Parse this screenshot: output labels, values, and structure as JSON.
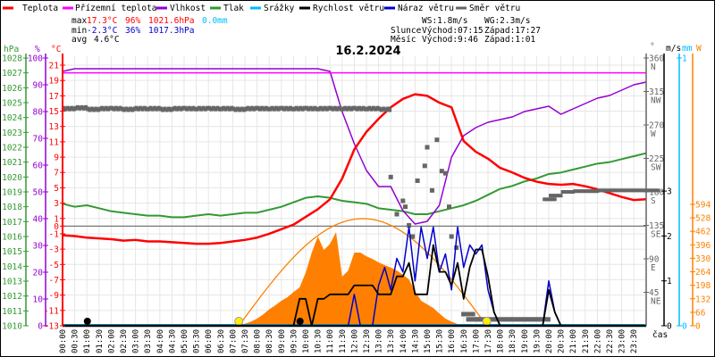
{
  "legend": [
    {
      "label": "Teplota",
      "color": "#ff0000"
    },
    {
      "label": "Přízemní teplota",
      "color": "#ff00ff"
    },
    {
      "label": "Vlhkost",
      "color": "#9400d3"
    },
    {
      "label": "Tlak",
      "color": "#339933"
    },
    {
      "label": "Srážky",
      "color": "#00bbff"
    },
    {
      "label": "Rychlost větru",
      "color": "#000000"
    },
    {
      "label": "Náraz větru",
      "color": "#0000cc"
    },
    {
      "label": "Směr větru",
      "color": "#666666"
    }
  ],
  "stats": {
    "max_label": "max",
    "max_temp": "17.3°C",
    "max_hum": "96%",
    "max_press": "1021.6hPa",
    "rain": "0.0mm",
    "min_label": "min",
    "min_temp": "-2.3°C",
    "min_hum": "36%",
    "min_press": "1017.3hPa",
    "avg_label": "avg",
    "avg_temp": "4.6°C",
    "ws": "WS:1.8m/s",
    "wg": "WG:2.3m/s",
    "sun_label": "Slunce",
    "sunrise": "Východ:07:15",
    "sunset": "Západ:17:27",
    "moon_label": "Měsíc",
    "moonrise": "Východ:9:46",
    "moonset": "Západ:1:01"
  },
  "colors": {
    "temp": "#ff0000",
    "apparent": "#ff00ff",
    "hum": "#9400d3",
    "press": "#339933",
    "rain": "#00bbff",
    "wind": "#000000",
    "gust": "#0000cc",
    "dir": "#666666",
    "solar": "#ff8000",
    "grid": "#e6e6e6"
  },
  "chart_data": {
    "type": "line",
    "title": "16.2.2024",
    "xlabel": "čas",
    "x_ticks": [
      "00:00",
      "00:30",
      "01:00",
      "01:30",
      "02:00",
      "02:30",
      "03:00",
      "03:30",
      "04:00",
      "04:30",
      "05:00",
      "05:30",
      "06:00",
      "06:30",
      "07:00",
      "07:30",
      "08:00",
      "08:30",
      "09:00",
      "09:30",
      "10:00",
      "10:30",
      "11:00",
      "11:30",
      "12:00",
      "12:30",
      "13:00",
      "13:30",
      "14:00",
      "14:30",
      "15:00",
      "15:30",
      "16:00",
      "16:30",
      "17:00",
      "17:30",
      "18:00",
      "18:30",
      "19:00",
      "19:30",
      "20:00",
      "20:30",
      "21:00",
      "21:30",
      "22:00",
      "22:30",
      "23:00",
      "23:30"
    ],
    "x_range_hours": [
      0,
      24
    ],
    "axes": {
      "press": {
        "unit": "hPa",
        "range": [
          1010,
          1028
        ],
        "ticks": [
          1010,
          1011,
          1012,
          1013,
          1014,
          1015,
          1016,
          1017,
          1018,
          1019,
          1020,
          1021,
          1022,
          1023,
          1024,
          1025,
          1026,
          1027,
          1028
        ]
      },
      "hum": {
        "unit": "%",
        "range": [
          0,
          100
        ],
        "ticks": [
          0,
          10,
          20,
          30,
          40,
          50,
          60,
          70,
          80,
          90,
          100
        ]
      },
      "temp": {
        "unit": "°C",
        "range": [
          -13,
          21.9
        ],
        "ticks": [
          -13,
          -11,
          -9,
          -7,
          -5,
          -3,
          -1,
          0,
          1,
          3,
          5,
          7,
          9,
          11,
          13,
          15,
          17,
          19,
          21
        ]
      },
      "dir": {
        "unit": "°",
        "range": [
          0,
          360
        ],
        "ticks": [
          45,
          90,
          135,
          180,
          225,
          270,
          315,
          360
        ],
        "names": [
          "NE",
          "E",
          "SE",
          "S",
          "SW",
          "W",
          "NW",
          "N"
        ]
      },
      "wind": {
        "unit": "m/s",
        "range": [
          0,
          3.5
        ],
        "ticks": [
          0,
          1,
          2,
          3
        ]
      },
      "rain": {
        "unit": "mm",
        "range": [
          0,
          1
        ],
        "ticks": [
          0,
          1
        ]
      },
      "solar": {
        "unit": "W",
        "range": [
          0,
          1310
        ],
        "ticks": [
          0,
          66,
          132,
          198,
          264,
          330,
          396,
          462,
          528,
          594
        ]
      }
    },
    "series": [
      {
        "name": "Teplota",
        "axis": "temp",
        "x_step_hours": 0.5,
        "values": [
          -1.2,
          -1.3,
          -1.5,
          -1.6,
          -1.7,
          -1.9,
          -1.8,
          -2.0,
          -2.0,
          -2.1,
          -2.2,
          -2.3,
          -2.3,
          -2.2,
          -2.0,
          -1.8,
          -1.5,
          -1.0,
          -0.4,
          0.2,
          1.2,
          2.2,
          3.5,
          6.2,
          10.0,
          12.3,
          14.0,
          15.5,
          16.6,
          17.2,
          17.0,
          16.1,
          15.5,
          11.1,
          9.7,
          8.8,
          7.6,
          7.0,
          6.3,
          5.8,
          5.5,
          5.4,
          5.5,
          5.2,
          4.8,
          4.3,
          3.8,
          3.4,
          3.5
        ]
      },
      {
        "name": "Přízemní teplota",
        "axis": "temp",
        "x_step_hours": 24,
        "values": [
          20.0,
          20.0
        ]
      },
      {
        "name": "Vlhkost",
        "axis": "hum",
        "x_step_hours": 0.5,
        "values": [
          95,
          96,
          96,
          96,
          96,
          96,
          96,
          96,
          96,
          96,
          96,
          96,
          96,
          96,
          96,
          96,
          96,
          96,
          96,
          96,
          96,
          96,
          95,
          80,
          68,
          58,
          52,
          52,
          43,
          38,
          39,
          45,
          63,
          71,
          74,
          76,
          77,
          78,
          80,
          81,
          82,
          79,
          81,
          83,
          85,
          86,
          88,
          90,
          91
        ]
      },
      {
        "name": "Tlak",
        "axis": "press",
        "x_step_hours": 0.5,
        "values": [
          1018.2,
          1018.0,
          1018.1,
          1017.9,
          1017.7,
          1017.6,
          1017.5,
          1017.4,
          1017.4,
          1017.3,
          1017.3,
          1017.4,
          1017.5,
          1017.4,
          1017.5,
          1017.6,
          1017.6,
          1017.8,
          1018.0,
          1018.3,
          1018.6,
          1018.7,
          1018.6,
          1018.4,
          1018.3,
          1018.2,
          1017.9,
          1017.8,
          1017.7,
          1017.5,
          1017.5,
          1017.7,
          1017.9,
          1018.1,
          1018.4,
          1018.8,
          1019.2,
          1019.4,
          1019.7,
          1019.9,
          1020.2,
          1020.3,
          1020.5,
          1020.7,
          1020.9,
          1021.0,
          1021.2,
          1021.4,
          1021.6
        ]
      },
      {
        "name": "Srážky",
        "axis": "rain",
        "x_step_hours": 24,
        "values": [
          0,
          0
        ]
      },
      {
        "name": "Rychlost větru",
        "axis": "wind",
        "x_step_hours": 0.25,
        "values": [
          0,
          0,
          0,
          0,
          0,
          0,
          0,
          0,
          0,
          0,
          0,
          0,
          0,
          0,
          0,
          0,
          0,
          0,
          0,
          0,
          0,
          0,
          0,
          0,
          0,
          0,
          0,
          0,
          0,
          0,
          0,
          0,
          0,
          0,
          0,
          0,
          0,
          0,
          0,
          0.6,
          0.6,
          0,
          0.6,
          0.6,
          0.7,
          0.7,
          0.7,
          0.7,
          0.9,
          0.9,
          0.9,
          0.9,
          0.7,
          0.7,
          0.7,
          1.1,
          1.1,
          1.4,
          0.7,
          0.7,
          0.7,
          1.8,
          1.2,
          1.2,
          0.9,
          1.4,
          0.6,
          1.3,
          1.7,
          1.7,
          1.1,
          0.3,
          0,
          0,
          0,
          0,
          0,
          0,
          0,
          0,
          0.8,
          0.3,
          0,
          0,
          0,
          0,
          0,
          0,
          0,
          0,
          0,
          0,
          0,
          0,
          0,
          0,
          0
        ]
      },
      {
        "name": "Náraz větru",
        "axis": "wind",
        "x_step_hours": 0.25,
        "values": [
          0,
          0,
          0,
          0,
          0,
          0,
          0,
          0,
          0,
          0,
          0,
          0,
          0,
          0,
          0,
          0,
          0,
          0,
          0,
          0,
          0,
          0,
          0,
          0,
          0,
          0,
          0,
          0,
          0,
          0,
          0,
          0,
          0,
          0,
          0,
          0,
          0,
          0,
          0,
          0,
          0,
          0,
          0,
          0,
          0,
          0,
          0,
          0,
          0.7,
          0,
          0,
          0,
          0.9,
          1.3,
          0.8,
          1.5,
          1.2,
          2.2,
          1.0,
          2.2,
          1.5,
          2.2,
          1.2,
          1.6,
          0.8,
          2.2,
          1.3,
          1.8,
          1.6,
          1.8,
          0.8,
          0.3,
          0,
          0,
          0,
          0,
          0,
          0,
          0,
          0,
          1.0,
          0.3,
          0,
          0,
          0,
          0,
          0,
          0,
          0,
          0,
          0,
          0,
          0,
          0,
          0,
          0,
          0
        ]
      },
      {
        "name": "Solar radiation",
        "axis": "solar",
        "x_step_hours": 0.25,
        "values": [
          0,
          0,
          0,
          0,
          0,
          0,
          0,
          0,
          0,
          0,
          0,
          0,
          0,
          0,
          0,
          0,
          0,
          0,
          0,
          0,
          0,
          0,
          0,
          0,
          0,
          0,
          0,
          0,
          0,
          0,
          10,
          20,
          35,
          55,
          80,
          100,
          122,
          140,
          165,
          188,
          260,
          358,
          437,
          371,
          400,
          458,
          240,
          270,
          358,
          358,
          340,
          327,
          310,
          297,
          285,
          270,
          250,
          227,
          170,
          122,
          105,
          87,
          60,
          35,
          20,
          9,
          0,
          0,
          0,
          0,
          0,
          0,
          0,
          0,
          0,
          0,
          0,
          0,
          0,
          0,
          0,
          0,
          0,
          0,
          0,
          0,
          0,
          0,
          0,
          0,
          0,
          0,
          0,
          0,
          0,
          0,
          0
        ]
      },
      {
        "name": "Theoretical solar",
        "axis": "solar",
        "x_step_hours": 1,
        "values": [
          0,
          0,
          0,
          0,
          0,
          0,
          0,
          0,
          60,
          230,
          380,
          480,
          524,
          500,
          430,
          320,
          180,
          40,
          0,
          0,
          0,
          0,
          0,
          0,
          0
        ]
      }
    ],
    "wind_direction_points": [
      [
        0,
        292
      ],
      [
        0.5,
        293
      ],
      [
        1,
        291
      ],
      [
        1.5,
        292
      ],
      [
        2,
        292
      ],
      [
        2.5,
        291
      ],
      [
        3,
        292
      ],
      [
        3.5,
        292
      ],
      [
        4,
        291
      ],
      [
        4.5,
        292
      ],
      [
        5,
        292
      ],
      [
        5.5,
        292
      ],
      [
        6,
        292
      ],
      [
        6.5,
        292
      ],
      [
        7,
        291
      ],
      [
        7.5,
        292
      ],
      [
        8,
        292
      ],
      [
        8.5,
        292
      ],
      [
        9,
        292
      ],
      [
        9.5,
        292
      ],
      [
        10,
        292
      ],
      [
        10.5,
        292
      ],
      [
        11,
        292
      ],
      [
        11.5,
        292
      ],
      [
        12,
        292
      ],
      [
        12.5,
        292
      ],
      [
        13,
        291
      ],
      [
        13.5,
        200
      ],
      [
        13.75,
        150
      ],
      [
        14.0,
        168
      ],
      [
        14.1,
        160
      ],
      [
        14.25,
        135
      ],
      [
        14.4,
        120
      ],
      [
        14.6,
        195
      ],
      [
        14.9,
        215
      ],
      [
        15.0,
        240
      ],
      [
        15.2,
        182
      ],
      [
        15.4,
        250
      ],
      [
        15.6,
        208
      ],
      [
        15.75,
        205
      ],
      [
        15.9,
        160
      ],
      [
        16.0,
        120
      ],
      [
        16.2,
        105
      ],
      [
        16.4,
        15
      ],
      [
        16.6,
        8
      ],
      [
        17,
        8
      ],
      [
        17.5,
        8
      ],
      [
        18,
        8
      ],
      [
        18.5,
        8
      ],
      [
        19,
        8
      ],
      [
        19.5,
        8
      ],
      [
        19.75,
        170
      ],
      [
        20,
        175
      ],
      [
        20.5,
        180
      ],
      [
        21,
        181
      ],
      [
        21.5,
        181
      ],
      [
        22,
        182
      ],
      [
        22.5,
        182
      ],
      [
        23,
        182
      ],
      [
        23.5,
        182
      ],
      [
        24,
        182
      ]
    ],
    "markers": {
      "sunrise": 7.25,
      "sunset": 17.45,
      "moonrise": 9.77,
      "moonset": 1.02
    }
  }
}
